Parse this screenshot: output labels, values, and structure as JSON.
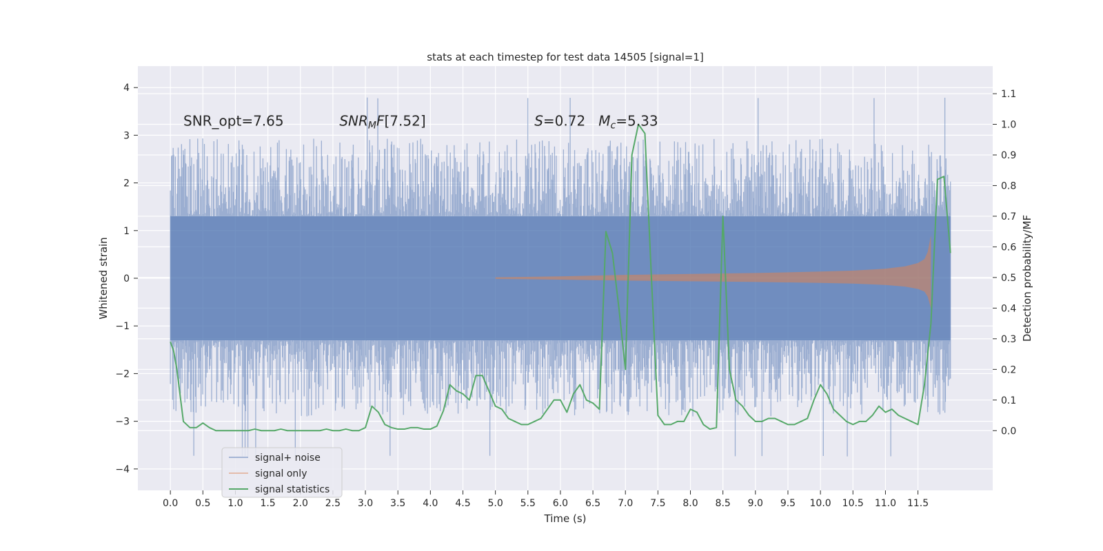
{
  "chart_data": {
    "type": "line",
    "title": "stats at each timestep for test data 14505 [signal=1]",
    "xlabel": "Time (s)",
    "ylabel_left": "Whitened strain",
    "ylabel_right": "Detection probability/MF",
    "xlim": [
      -0.5,
      12.65
    ],
    "ylim_left": [
      -4.45,
      4.45
    ],
    "ylim_right": [
      -0.195,
      1.19
    ],
    "x_ticks": [
      0.0,
      0.5,
      1.0,
      1.5,
      2.0,
      2.5,
      3.0,
      3.5,
      4.0,
      4.5,
      5.0,
      5.5,
      6.0,
      6.5,
      7.0,
      7.5,
      8.0,
      8.5,
      9.0,
      9.5,
      10.0,
      10.5,
      11.0,
      11.5
    ],
    "x_tick_labels": [
      "0.0",
      "0.5",
      "1.0",
      "1.5",
      "2.0",
      "2.5",
      "3.0",
      "3.5",
      "4.0",
      "4.5",
      "5.0",
      "5.5",
      "6.0",
      "6.5",
      "7.0",
      "7.5",
      "8.0",
      "8.5",
      "9.0",
      "9.5",
      "10.0",
      "10.5",
      "11.0",
      "11.5"
    ],
    "y_left_ticks": [
      -4,
      -3,
      -2,
      -1,
      0,
      1,
      2,
      3,
      4
    ],
    "y_left_tick_labels": [
      "−4",
      "−3",
      "−2",
      "−1",
      "0",
      "1",
      "2",
      "3",
      "4"
    ],
    "y_right_ticks": [
      0.0,
      0.1,
      0.2,
      0.3,
      0.4,
      0.5,
      0.6,
      0.7,
      0.8,
      0.9,
      1.0,
      1.1
    ],
    "y_right_tick_labels": [
      "0.0",
      "0.1",
      "0.2",
      "0.3",
      "0.4",
      "0.5",
      "0.6",
      "0.7",
      "0.8",
      "0.9",
      "1.0",
      "1.1"
    ],
    "grid": true,
    "legend_position": "lower-left",
    "annotations": [
      {
        "text": "SNR_opt=7.65",
        "x": 0.2,
        "y": 3.3
      },
      {
        "text": "SNR_MF=[7.52]",
        "x": 2.6,
        "y": 3.3
      },
      {
        "text": "S=0.72   M_c=5.33",
        "x": 5.6,
        "y": 3.3
      }
    ],
    "series": [
      {
        "name": "signal+ noise",
        "axis": "left",
        "color": "#4c72b0",
        "t_range": [
          0.0,
          12.0
        ],
        "typical_amplitude": 1.3,
        "peak_range": [
          -4.05,
          4.1
        ]
      },
      {
        "name": "signal only",
        "axis": "left",
        "color": "#dd8452",
        "envelope_t": [
          5.0,
          6.0,
          7.0,
          8.0,
          9.0,
          10.0,
          10.5,
          11.0,
          11.3,
          11.5,
          11.6,
          11.65,
          11.7
        ],
        "envelope_amp": [
          0.02,
          0.04,
          0.07,
          0.09,
          0.11,
          0.14,
          0.16,
          0.2,
          0.25,
          0.32,
          0.4,
          0.55,
          0.9
        ]
      },
      {
        "name": "signal statistics",
        "axis": "right",
        "color": "#55a868",
        "x": [
          0.0,
          0.05,
          0.1,
          0.2,
          0.3,
          0.4,
          0.5,
          0.6,
          0.7,
          0.8,
          0.9,
          1.0,
          1.1,
          1.2,
          1.3,
          1.4,
          1.5,
          1.6,
          1.7,
          1.8,
          1.9,
          2.0,
          2.1,
          2.2,
          2.3,
          2.4,
          2.5,
          2.6,
          2.7,
          2.8,
          2.9,
          3.0,
          3.1,
          3.2,
          3.3,
          3.4,
          3.5,
          3.6,
          3.7,
          3.8,
          3.9,
          4.0,
          4.1,
          4.2,
          4.3,
          4.4,
          4.5,
          4.6,
          4.7,
          4.8,
          4.9,
          5.0,
          5.1,
          5.2,
          5.3,
          5.4,
          5.5,
          5.6,
          5.7,
          5.8,
          5.9,
          6.0,
          6.1,
          6.2,
          6.3,
          6.4,
          6.5,
          6.6,
          6.7,
          6.8,
          6.9,
          7.0,
          7.1,
          7.2,
          7.3,
          7.4,
          7.5,
          7.6,
          7.7,
          7.8,
          7.9,
          8.0,
          8.1,
          8.2,
          8.3,
          8.4,
          8.5,
          8.6,
          8.7,
          8.8,
          8.9,
          9.0,
          9.1,
          9.2,
          9.3,
          9.4,
          9.5,
          9.6,
          9.7,
          9.8,
          9.9,
          10.0,
          10.1,
          10.2,
          10.3,
          10.4,
          10.5,
          10.6,
          10.7,
          10.8,
          10.9,
          11.0,
          11.1,
          11.2,
          11.3,
          11.4,
          11.5,
          11.6,
          11.7,
          11.8,
          11.9,
          12.0
        ],
        "y": [
          0.29,
          0.26,
          0.2,
          0.03,
          0.01,
          0.01,
          0.025,
          0.01,
          0.0,
          0.0,
          0.0,
          0.0,
          0.0,
          0.0,
          0.005,
          0.0,
          0.0,
          0.0,
          0.005,
          0.0,
          0.0,
          0.0,
          0.0,
          0.0,
          0.0,
          0.005,
          0.0,
          0.0,
          0.005,
          0.0,
          0.0,
          0.01,
          0.08,
          0.06,
          0.02,
          0.01,
          0.005,
          0.005,
          0.01,
          0.01,
          0.005,
          0.005,
          0.015,
          0.065,
          0.15,
          0.13,
          0.12,
          0.1,
          0.18,
          0.18,
          0.13,
          0.08,
          0.07,
          0.04,
          0.03,
          0.02,
          0.02,
          0.03,
          0.04,
          0.07,
          0.1,
          0.1,
          0.06,
          0.12,
          0.15,
          0.1,
          0.09,
          0.07,
          0.65,
          0.58,
          0.4,
          0.2,
          0.9,
          1.0,
          0.97,
          0.5,
          0.05,
          0.02,
          0.02,
          0.03,
          0.03,
          0.07,
          0.06,
          0.02,
          0.005,
          0.01,
          0.7,
          0.2,
          0.1,
          0.08,
          0.05,
          0.03,
          0.03,
          0.04,
          0.04,
          0.03,
          0.02,
          0.02,
          0.03,
          0.04,
          0.1,
          0.15,
          0.12,
          0.07,
          0.05,
          0.03,
          0.02,
          0.03,
          0.03,
          0.05,
          0.08,
          0.06,
          0.07,
          0.05,
          0.04,
          0.03,
          0.02,
          0.15,
          0.35,
          0.82,
          0.83,
          0.58
        ]
      }
    ]
  }
}
